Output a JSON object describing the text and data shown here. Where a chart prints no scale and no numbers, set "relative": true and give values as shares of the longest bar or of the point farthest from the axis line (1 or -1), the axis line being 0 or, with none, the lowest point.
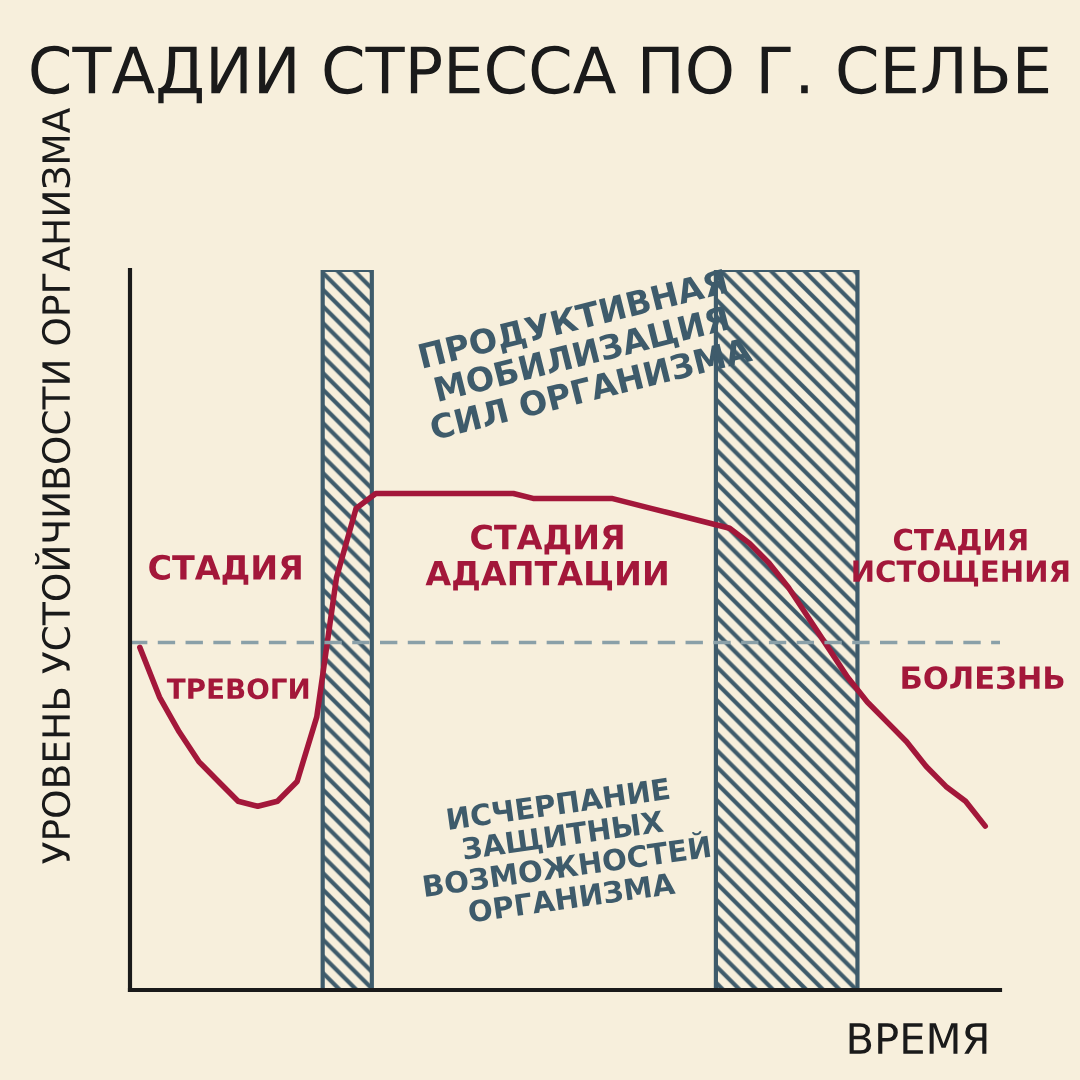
{
  "chart_data": {
    "type": "line",
    "title": "СТАДИИ СТРЕССА ПО Г. СЕЛЬЕ",
    "xlabel": "ВРЕМЯ",
    "ylabel": "УРОВЕНЬ УСТОЙЧИВОСТИ ОРГАНИЗМА",
    "relative": true,
    "categories": [
      null,
      null,
      null,
      null,
      null,
      null,
      null,
      null,
      null,
      null,
      null,
      null,
      null,
      null,
      null,
      null,
      null,
      null,
      null,
      null,
      null,
      null,
      null,
      null,
      null,
      null,
      null,
      null,
      null,
      null,
      null,
      null,
      null,
      null,
      null,
      null,
      null,
      null,
      null,
      null,
      null,
      null,
      null,
      null
    ],
    "series": [
      {
        "color": "#a3173a",
        "values": [
          0.69,
          0.59,
          0.52,
          0.46,
          0.42,
          0.38,
          0.37,
          0.38,
          0.42,
          0.55,
          0.83,
          0.97,
          1.0,
          1.0,
          1.0,
          1.0,
          1.0,
          1.0,
          1.0,
          1.0,
          0.99,
          0.99,
          0.99,
          0.99,
          0.99,
          0.98,
          0.97,
          0.96,
          0.95,
          0.94,
          0.93,
          0.9,
          0.86,
          0.81,
          0.75,
          0.69,
          0.63,
          0.58,
          0.54,
          0.5,
          0.45,
          0.41,
          0.38,
          0.33
        ]
      }
    ],
    "ref_lines": [
      {
        "axis": "y",
        "value": 0.7,
        "color": "#8aa0a8",
        "line_style": "dashed"
      }
    ],
    "annotations": [
      "СТАДИЯ",
      "ТРЕВОГИ",
      "СТАДИЯ\nАДАПТАЦИИ",
      "СТАДИЯ\nИСТОЩЕНИЯ",
      "БОЛЕЗНЬ",
      "ПРОДУКТИВНАЯ\nМОБИЛИЗАЦИЯ\nСИЛ ОРГАНИЗМА",
      "ИСЧЕРПАНИЕ\nЗАЩИТНЫХ\nВОЗМОЖНОСТЕЙ\nОРГАНИЗМА"
    ],
    "legend": false
  }
}
